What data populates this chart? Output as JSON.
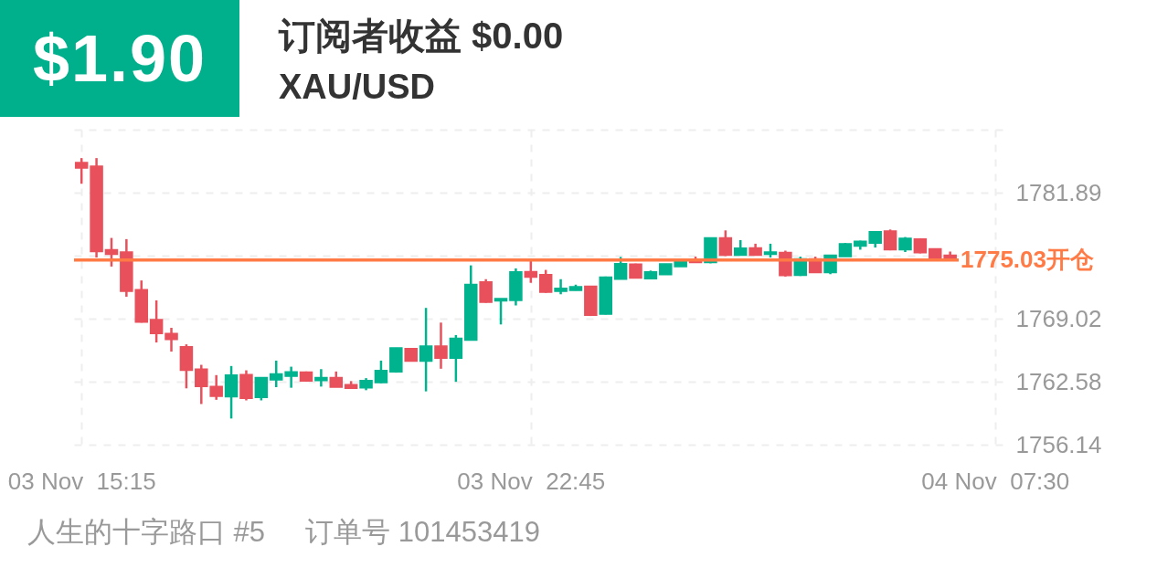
{
  "chart_data": {
    "type": "candlestick",
    "title": "订阅者收益 $0.00",
    "subtitle": "XAU/USD",
    "categories": [
      "03 Nov  15:15",
      null,
      null,
      null,
      null,
      null,
      null,
      null,
      null,
      null,
      null,
      null,
      null,
      null,
      null,
      null,
      null,
      null,
      null,
      null,
      null,
      null,
      null,
      null,
      null,
      null,
      null,
      null,
      null,
      null,
      "03 Nov  22:45",
      null,
      null,
      null,
      null,
      null,
      null,
      null,
      null,
      null,
      null,
      null,
      null,
      null,
      null,
      null,
      null,
      null,
      null,
      null,
      null,
      null,
      null,
      null,
      null,
      null,
      null,
      null,
      null,
      null,
      null,
      "04 Nov  07:30"
    ],
    "ohlc": [
      [
        1784.97,
        1785.43,
        1782.81,
        1784.41
      ],
      [
        1784.6,
        1785.43,
        1775.28,
        1775.89
      ],
      [
        1776.08,
        1777.28,
        1774.36,
        1775.62
      ],
      [
        1775.84,
        1777.16,
        1771.28,
        1771.83
      ],
      [
        1771.99,
        1772.94,
        1768.64,
        1768.69
      ],
      [
        1768.94,
        1770.91,
        1766.61,
        1767.53
      ],
      [
        1767.53,
        1768.11,
        1765.68,
        1766.91
      ],
      [
        1766.17,
        1766.42,
        1761.93,
        1763.77
      ],
      [
        1763.89,
        1764.33,
        1760.33,
        1762.11
      ],
      [
        1762.11,
        1763.28,
        1760.76,
        1761.12
      ],
      [
        1761.07,
        1764.21,
        1758.85,
        1763.28
      ],
      [
        1763.34,
        1763.77,
        1760.7,
        1760.91
      ],
      [
        1761.0,
        1763.04,
        1760.7,
        1763.04
      ],
      [
        1762.79,
        1764.76,
        1762.05,
        1763.4
      ],
      [
        1763.16,
        1764.14,
        1761.99,
        1763.62
      ],
      [
        1763.59,
        1763.65,
        1762.6,
        1762.67
      ],
      [
        1762.73,
        1763.89,
        1762.11,
        1763.04
      ],
      [
        1763.04,
        1763.65,
        1762.05,
        1762.05
      ],
      [
        1762.3,
        1762.67,
        1761.87,
        1761.93
      ],
      [
        1761.99,
        1762.97,
        1761.74,
        1762.73
      ],
      [
        1762.51,
        1764.76,
        1762.45,
        1763.75
      ],
      [
        1763.62,
        1766.05,
        1763.53,
        1766.05
      ],
      [
        1765.99,
        1765.99,
        1764.7,
        1764.7
      ],
      [
        1764.7,
        1770.14,
        1761.62,
        1766.24
      ],
      [
        1766.24,
        1768.64,
        1763.93,
        1765.0
      ],
      [
        1765.0,
        1767.37,
        1762.6,
        1767.03
      ],
      [
        1766.85,
        1774.48,
        1766.85,
        1772.54
      ],
      [
        1772.79,
        1773.07,
        1770.67,
        1770.72
      ],
      [
        1770.85,
        1771.09,
        1768.45,
        1771.09
      ],
      [
        1770.91,
        1774.17,
        1770.39,
        1773.81
      ],
      [
        1773.83,
        1774.91,
        1772.7,
        1773.28
      ],
      [
        1773.53,
        1774.02,
        1771.68,
        1771.74
      ],
      [
        1771.83,
        1773.07,
        1771.53,
        1772.14
      ],
      [
        1771.92,
        1772.51,
        1771.92,
        1772.29
      ],
      [
        1772.35,
        1772.38,
        1769.31,
        1769.38
      ],
      [
        1769.5,
        1773.34,
        1769.47,
        1773.28
      ],
      [
        1773.07,
        1775.34,
        1773.07,
        1774.66
      ],
      [
        1774.6,
        1774.66,
        1773.16,
        1773.19
      ],
      [
        1773.12,
        1773.95,
        1773.12,
        1773.81
      ],
      [
        1773.53,
        1774.62,
        1773.53,
        1774.62
      ],
      [
        1774.36,
        1774.91,
        1774.36,
        1774.91
      ],
      [
        1775.06,
        1775.37,
        1774.76,
        1774.76
      ],
      [
        1774.76,
        1777.28,
        1774.69,
        1777.28
      ],
      [
        1777.28,
        1778.05,
        1775.43,
        1775.52
      ],
      [
        1775.52,
        1777.06,
        1775.52,
        1776.23
      ],
      [
        1776.26,
        1776.69,
        1775.52,
        1775.52
      ],
      [
        1775.61,
        1776.69,
        1775.28,
        1775.84
      ],
      [
        1775.8,
        1775.98,
        1773.34,
        1773.44
      ],
      [
        1773.46,
        1775.37,
        1773.4,
        1775.15
      ],
      [
        1775.15,
        1775.37,
        1773.74,
        1773.74
      ],
      [
        1773.74,
        1775.52,
        1773.58,
        1775.52
      ],
      [
        1775.37,
        1776.76,
        1775.37,
        1776.69
      ],
      [
        1776.44,
        1777.0,
        1776.08,
        1776.94
      ],
      [
        1776.76,
        1777.92,
        1776.3,
        1777.92
      ],
      [
        1777.99,
        1778.14,
        1776.02,
        1776.08
      ],
      [
        1776.08,
        1777.37,
        1775.84,
        1777.25
      ],
      [
        1777.18,
        1777.25,
        1775.71,
        1775.77
      ],
      [
        1776.17,
        1776.17,
        1775.22,
        1775.22
      ],
      [
        1775.52,
        1775.89,
        1775.22,
        1775.22
      ],
      null,
      null,
      null
    ],
    "colors": [
      "#e8505b",
      "#e8505b",
      "#e8505b",
      "#e8505b",
      "#e8505b",
      "#e8505b",
      "#e8505b",
      "#e8505b",
      "#e8505b",
      "#e8505b",
      "#00b38f",
      "#e8505b",
      "#00b38f",
      "#00b38f",
      "#00b38f",
      "#e8505b",
      "#00b38f",
      "#e8505b",
      "#e8505b",
      "#00b38f",
      "#00b38f",
      "#00b38f",
      "#e8505b",
      "#00b38f",
      "#e8505b",
      "#00b38f",
      "#00b38f",
      "#e8505b",
      "#00b38f",
      "#00b38f",
      "#e8505b",
      "#e8505b",
      "#00b38f",
      "#00b38f",
      "#e8505b",
      "#00b38f",
      "#00b38f",
      "#e8505b",
      "#00b38f",
      "#00b38f",
      "#00b38f",
      "#e8505b",
      "#00b38f",
      "#e8505b",
      "#00b38f",
      "#e8505b",
      "#00b38f",
      "#e8505b",
      "#00b38f",
      "#e8505b",
      "#00b38f",
      "#00b38f",
      "#00b38f",
      "#00b38f",
      "#e8505b",
      "#00b38f",
      "#e8505b",
      "#e8505b",
      "#e8505b",
      null,
      null,
      null
    ],
    "ylim": [
      1755.9,
      1788.33
    ],
    "yticks": [
      1756.14,
      1762.58,
      1769.02,
      {
        "value": 1775.46,
        "label": null
      },
      1781.89,
      {
        "value": 1788.33,
        "label": null
      }
    ],
    "grid": true,
    "ref_lines": [
      {
        "axis": "y",
        "value": 1775.03,
        "label": "1775.03开仓",
        "color": "#ff7a45"
      }
    ],
    "annotations": [
      "$1.90",
      "人生的十字路口 #5",
      "订单号 101453419"
    ]
  }
}
